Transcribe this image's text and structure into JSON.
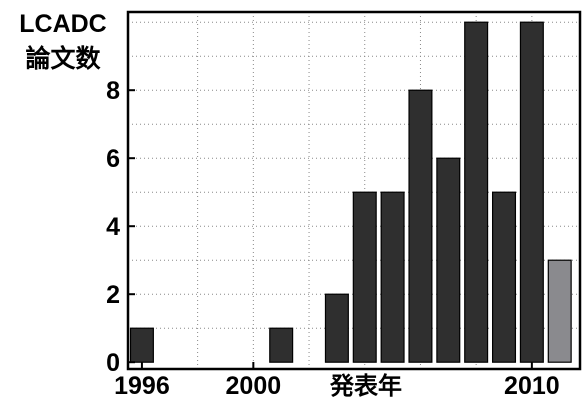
{
  "chart_data": {
    "type": "bar",
    "ylabel_line1": "LCADC",
    "ylabel_line2": "論文数",
    "xlabel": "発表年",
    "categories": [
      "1996",
      "1997",
      "1998",
      "1999",
      "2000",
      "2001",
      "2002",
      "2003",
      "2004",
      "2005",
      "2006",
      "2007",
      "2008",
      "2009",
      "2010",
      "2011"
    ],
    "values": [
      1,
      0,
      0,
      0,
      0,
      1,
      0,
      2,
      5,
      5,
      8,
      6,
      10,
      5,
      10,
      3
    ],
    "highlight_index": 15,
    "bar_color": "#2f2f2f",
    "highlight_color": "#8a8a8e",
    "xlim": [
      1995.5,
      2011.8
    ],
    "ylim": [
      -0.2,
      10.3
    ],
    "y_ticks": [
      0,
      2,
      4,
      6,
      8
    ],
    "y_tick_labels": [
      "0",
      "2",
      "4",
      "6",
      "8"
    ],
    "y_grid": [
      1,
      2,
      3,
      4,
      5,
      6,
      7,
      8,
      9,
      10
    ],
    "x_ticks": [
      1996,
      2000,
      2010
    ],
    "x_tick_labels": [
      "1996",
      "2000",
      "2010"
    ],
    "x_grid": [
      1998,
      2000,
      2002,
      2004,
      2006,
      2008,
      2010
    ],
    "grid": true,
    "grid_style": "dotted"
  }
}
